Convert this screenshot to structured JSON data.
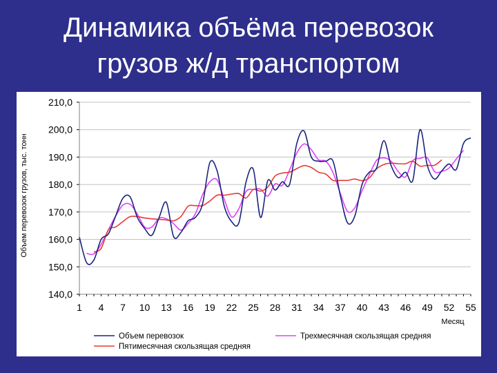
{
  "slide": {
    "title_line1": "Динамика объёма перевозок",
    "title_line2": "грузов ж/д транспортом"
  },
  "chart_data": {
    "type": "line",
    "xlabel": "Месяц",
    "ylabel": "Объем перевозок грузов, тыс. тонн",
    "ylim": [
      140,
      210
    ],
    "xlim": [
      1,
      55
    ],
    "y_ticks": [
      "140,0",
      "150,0",
      "160,0",
      "170,0",
      "180,0",
      "190,0",
      "200,0",
      "210,0"
    ],
    "x_ticks": [
      1,
      4,
      7,
      10,
      13,
      16,
      19,
      22,
      25,
      28,
      31,
      34,
      37,
      40,
      43,
      46,
      49,
      52,
      55
    ],
    "grid": "horizontal",
    "legend_position": "bottom",
    "series": [
      {
        "name": "Объем перевозок",
        "color": "#1a237e",
        "x": [
          1,
          2,
          3,
          4,
          5,
          6,
          7,
          8,
          9,
          10,
          11,
          12,
          13,
          14,
          15,
          16,
          17,
          18,
          19,
          20,
          21,
          22,
          23,
          24,
          25,
          26,
          27,
          28,
          29,
          30,
          31,
          32,
          33,
          34,
          35,
          36,
          37,
          38,
          39,
          40,
          41,
          42,
          43,
          44,
          45,
          46,
          47,
          48,
          49,
          50,
          51,
          52,
          53,
          54,
          55
        ],
        "values": [
          160.8,
          151.5,
          152.5,
          160.0,
          162.0,
          168.5,
          175.0,
          175.5,
          168.0,
          164.0,
          161.5,
          168.0,
          173.5,
          161.0,
          162.5,
          166.8,
          168.0,
          173.0,
          188.0,
          185.0,
          172.0,
          166.5,
          166.0,
          181.0,
          185.5,
          168.0,
          181.5,
          178.0,
          181.0,
          180.0,
          195.0,
          199.5,
          190.0,
          188.5,
          188.5,
          188.5,
          176.0,
          166.0,
          168.5,
          180.0,
          184.5,
          186.0,
          196.0,
          187.0,
          182.5,
          184.5,
          181.5,
          200.0,
          187.0,
          182.0,
          185.0,
          187.5,
          185.5,
          195.0,
          197.0
        ]
      },
      {
        "name": "Трехмесячная скользящая средняя",
        "color": "#e040fb",
        "x": [
          2,
          3,
          4,
          5,
          6,
          7,
          8,
          9,
          10,
          11,
          12,
          13,
          14,
          15,
          16,
          17,
          18,
          19,
          20,
          21,
          22,
          23,
          24,
          25,
          26,
          27,
          28,
          29,
          30,
          31,
          32,
          33,
          34,
          35,
          36,
          37,
          38,
          39,
          40,
          41,
          42,
          43,
          44,
          45,
          46,
          47,
          48,
          49,
          50,
          51,
          52,
          53,
          54
        ],
        "values": [
          154.9,
          154.7,
          158.2,
          163.5,
          168.5,
          172.5,
          172.8,
          169.2,
          164.5,
          164.5,
          167.7,
          167.5,
          165.7,
          163.4,
          165.8,
          169.3,
          176.3,
          181.0,
          181.7,
          174.5,
          168.2,
          171.2,
          177.5,
          178.2,
          178.3,
          175.8,
          180.2,
          179.7,
          185.3,
          191.5,
          194.8,
          192.7,
          189.0,
          188.5,
          184.3,
          176.8,
          170.2,
          171.5,
          177.7,
          183.5,
          188.8,
          189.7,
          188.5,
          184.7,
          182.8,
          188.7,
          189.5,
          189.7,
          184.7,
          184.8,
          186.0,
          189.3,
          192.5
        ]
      },
      {
        "name": "Пятимесячная скользящая средняя",
        "color": "#e53935",
        "x": [
          3,
          4,
          5,
          6,
          7,
          8,
          9,
          10,
          11,
          12,
          13,
          14,
          15,
          16,
          17,
          18,
          19,
          20,
          21,
          22,
          23,
          24,
          25,
          26,
          27,
          28,
          29,
          30,
          31,
          32,
          33,
          34,
          35,
          36,
          37,
          38,
          39,
          40,
          41,
          42,
          43,
          44,
          45,
          46,
          47,
          48,
          49,
          50,
          51
        ],
        "values": [
          155.4,
          156.7,
          163.5,
          164.5,
          166.5,
          168.3,
          168.3,
          167.8,
          167.5,
          167.3,
          167.1,
          166.8,
          168.3,
          172.1,
          172.3,
          172.3,
          174.0,
          176.1,
          176.1,
          176.5,
          176.7,
          175.1,
          178.2,
          177.6,
          179.1,
          183.1,
          184.2,
          184.5,
          185.8,
          186.9,
          186.2,
          184.5,
          183.8,
          181.5,
          181.5,
          181.5,
          182.0,
          181.4,
          182.4,
          185.7,
          187.3,
          187.8,
          187.6,
          187.6,
          188.5,
          186.7,
          187.0,
          187.0,
          189.0
        ]
      }
    ]
  }
}
